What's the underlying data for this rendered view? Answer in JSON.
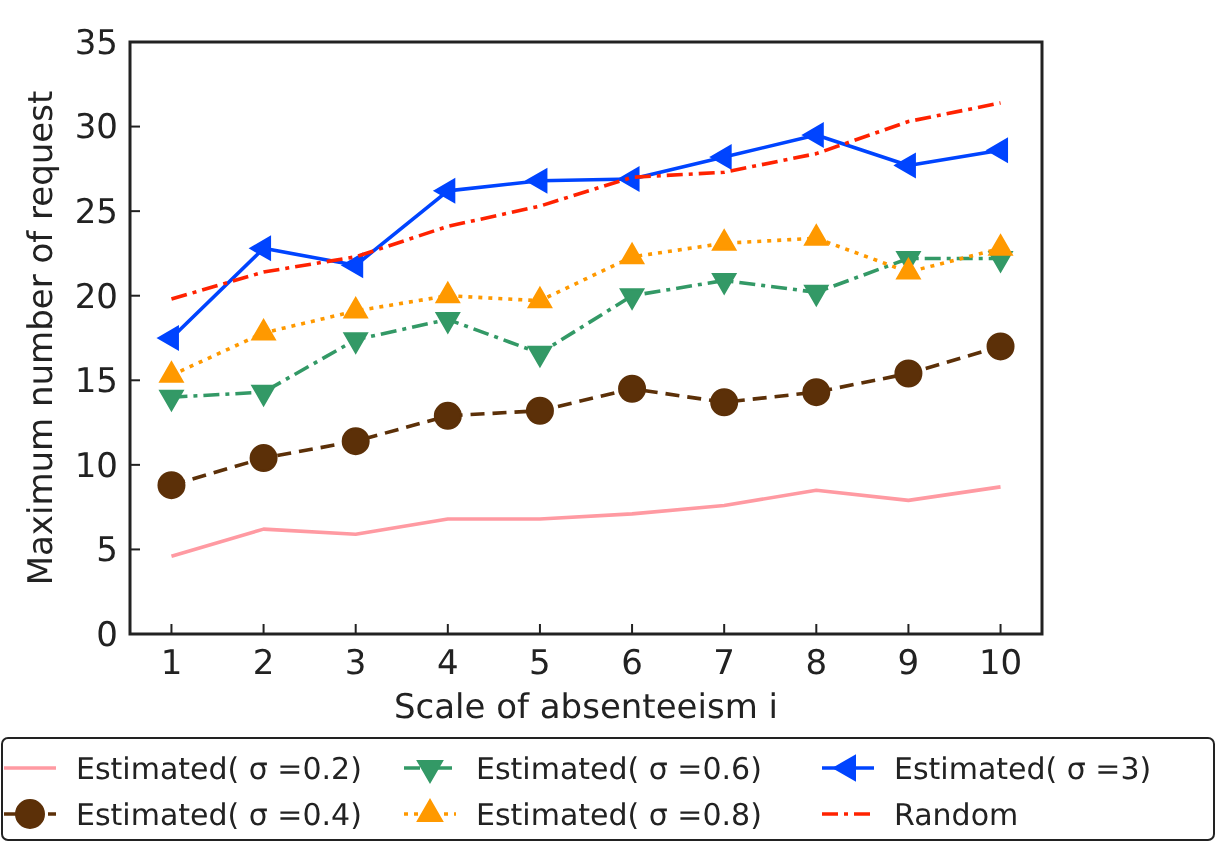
{
  "chart_data": {
    "type": "line",
    "xlabel": "Scale of absenteeism i",
    "ylabel": "Maximum number of request",
    "x": [
      1,
      2,
      3,
      4,
      5,
      6,
      7,
      8,
      9,
      10
    ],
    "series": [
      {
        "name": "Estimated( σ =0.2)",
        "color": "#ff9aa2",
        "marker": "none",
        "line_style": "solid",
        "values": [
          4.6,
          6.2,
          5.9,
          6.8,
          6.8,
          7.1,
          7.6,
          8.5,
          7.9,
          8.7
        ]
      },
      {
        "name": "Estimated( σ =0.4)",
        "color": "#5c3008",
        "marker": "circle",
        "line_style": "dashed",
        "values": [
          8.8,
          10.4,
          11.4,
          12.9,
          13.2,
          14.5,
          13.7,
          14.3,
          15.4,
          17.0
        ]
      },
      {
        "name": "Estimated( σ =0.6)",
        "color": "#339966",
        "marker": "triangle-down",
        "line_style": "dashdot",
        "values": [
          14.0,
          14.3,
          17.4,
          18.6,
          16.6,
          20.0,
          20.9,
          20.2,
          22.2,
          22.2
        ]
      },
      {
        "name": "Estimated( σ =0.8)",
        "color": "#ff9900",
        "marker": "triangle",
        "line_style": "dotted",
        "values": [
          15.3,
          17.8,
          19.1,
          20.0,
          19.7,
          22.3,
          23.1,
          23.4,
          21.4,
          22.8
        ]
      },
      {
        "name": "Estimated( σ =3)",
        "color": "#0044ff",
        "marker": "triangle-left",
        "line_style": "solid",
        "values": [
          17.5,
          22.8,
          21.8,
          26.2,
          26.8,
          26.9,
          28.2,
          29.5,
          27.7,
          28.6
        ]
      },
      {
        "name": "Random",
        "color": "#ff2200",
        "marker": "none",
        "line_style": "dashdot",
        "values": [
          19.8,
          21.4,
          22.3,
          24.1,
          25.3,
          27.0,
          27.3,
          28.4,
          30.3,
          31.4
        ]
      }
    ],
    "xlim": [
      0.55,
      10.45
    ],
    "xticks": [
      1,
      2,
      3,
      4,
      5,
      6,
      7,
      8,
      9,
      10
    ],
    "ylim": [
      0,
      35
    ],
    "yticks": [
      0,
      5,
      10,
      15,
      20,
      25,
      30,
      35
    ],
    "grid": false,
    "legend": "bottom"
  }
}
